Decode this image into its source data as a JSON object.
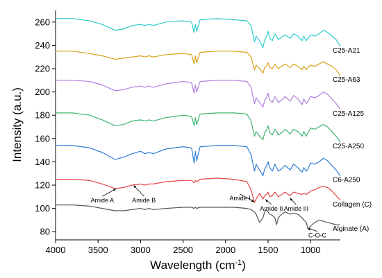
{
  "chart_data": {
    "type": "line",
    "title": "",
    "xlabel": "Wavelength (cm",
    "xlabel_sup": "-1",
    "xlabel_close": ")",
    "ylabel": "Intensity (a.u.)",
    "xlim": [
      4000,
      650
    ],
    "ylim": [
      73,
      270
    ],
    "x_ticks": [
      4000,
      3500,
      3000,
      2500,
      2000,
      1500,
      1000
    ],
    "y_ticks": [
      80,
      100,
      120,
      140,
      160,
      180,
      200,
      220,
      240,
      260
    ],
    "grid": false,
    "legend": "inline-right",
    "series": [
      {
        "name": "C25-A21",
        "color": "#2ECACA",
        "x": [
          4000,
          3800,
          3600,
          3450,
          3300,
          3200,
          3100,
          3000,
          2950,
          2900,
          2850,
          2700,
          2500,
          2400,
          2370,
          2355,
          2340,
          2300,
          2100,
          1900,
          1750,
          1700,
          1660,
          1640,
          1600,
          1560,
          1540,
          1520,
          1500,
          1480,
          1450,
          1420,
          1400,
          1380,
          1340,
          1300,
          1240,
          1200,
          1150,
          1100,
          1080,
          1050,
          1030,
          1000,
          950,
          900,
          850,
          800,
          750,
          700,
          650
        ],
        "y": [
          263,
          263,
          261,
          258,
          253,
          254,
          257,
          258,
          257,
          258,
          257,
          260,
          261,
          260,
          251,
          258,
          252,
          262,
          263,
          262,
          261,
          257,
          243,
          248,
          244,
          238,
          245,
          247,
          252,
          246,
          244,
          250,
          248,
          245,
          247,
          249,
          246,
          250,
          248,
          244,
          248,
          244,
          246,
          249,
          248,
          250,
          253,
          251,
          248,
          245,
          239
        ]
      },
      {
        "name": "C25-A63",
        "color": "#D4A017",
        "x": [
          4000,
          3800,
          3600,
          3450,
          3300,
          3200,
          3100,
          3000,
          2950,
          2900,
          2850,
          2700,
          2500,
          2400,
          2370,
          2355,
          2340,
          2300,
          2100,
          1900,
          1750,
          1700,
          1660,
          1640,
          1600,
          1560,
          1540,
          1520,
          1500,
          1480,
          1450,
          1420,
          1400,
          1380,
          1340,
          1300,
          1240,
          1200,
          1150,
          1100,
          1080,
          1050,
          1030,
          1000,
          950,
          900,
          850,
          800,
          750,
          700,
          650
        ],
        "y": [
          235,
          235,
          233,
          231,
          228,
          229,
          230,
          231,
          230,
          231,
          230,
          232,
          233,
          232,
          224,
          231,
          225,
          234,
          235,
          235,
          234,
          230,
          219,
          223,
          220,
          216,
          221,
          222,
          225,
          221,
          220,
          224,
          222,
          220,
          222,
          224,
          221,
          224,
          222,
          219,
          222,
          219,
          221,
          223,
          222,
          224,
          226,
          224,
          222,
          219,
          214
        ]
      },
      {
        "name": "C25-A125",
        "color": "#B07FE0",
        "x": [
          4000,
          3800,
          3600,
          3450,
          3300,
          3200,
          3100,
          3000,
          2950,
          2900,
          2850,
          2700,
          2500,
          2400,
          2370,
          2355,
          2340,
          2300,
          2100,
          1900,
          1750,
          1700,
          1660,
          1640,
          1600,
          1560,
          1540,
          1520,
          1500,
          1480,
          1450,
          1420,
          1400,
          1380,
          1340,
          1300,
          1240,
          1200,
          1150,
          1100,
          1080,
          1050,
          1030,
          1000,
          950,
          900,
          850,
          800,
          750,
          700,
          650
        ],
        "y": [
          210,
          210,
          209,
          206,
          201,
          202,
          204,
          205,
          204,
          205,
          204,
          207,
          209,
          208,
          199,
          206,
          200,
          209,
          210,
          210,
          209,
          204,
          190,
          195,
          191,
          187,
          193,
          195,
          199,
          193,
          191,
          196,
          194,
          191,
          193,
          196,
          192,
          197,
          194,
          189,
          194,
          190,
          192,
          196,
          195,
          197,
          200,
          198,
          194,
          190,
          185
        ]
      },
      {
        "name": "C25-A250",
        "color": "#3CB371",
        "x": [
          4000,
          3800,
          3600,
          3450,
          3300,
          3200,
          3100,
          3000,
          2950,
          2900,
          2850,
          2700,
          2500,
          2400,
          2370,
          2355,
          2340,
          2300,
          2100,
          1900,
          1750,
          1700,
          1660,
          1640,
          1600,
          1560,
          1540,
          1520,
          1500,
          1480,
          1450,
          1420,
          1400,
          1380,
          1340,
          1300,
          1240,
          1200,
          1150,
          1100,
          1080,
          1050,
          1030,
          1000,
          950,
          900,
          850,
          800,
          750,
          700,
          650
        ],
        "y": [
          182,
          182,
          180,
          176,
          171,
          172,
          175,
          176,
          175,
          176,
          175,
          178,
          180,
          179,
          171,
          178,
          172,
          181,
          182,
          182,
          181,
          175,
          162,
          166,
          162,
          159,
          165,
          167,
          171,
          165,
          163,
          168,
          166,
          163,
          165,
          168,
          164,
          168,
          166,
          162,
          166,
          162,
          165,
          169,
          168,
          170,
          172,
          170,
          166,
          162,
          157
        ]
      },
      {
        "name": "C6-A250",
        "color": "#2E7BD6",
        "x": [
          4000,
          3800,
          3600,
          3450,
          3300,
          3200,
          3100,
          3000,
          2950,
          2900,
          2850,
          2700,
          2500,
          2400,
          2370,
          2355,
          2340,
          2300,
          2100,
          1900,
          1750,
          1700,
          1660,
          1640,
          1600,
          1560,
          1540,
          1520,
          1500,
          1480,
          1450,
          1420,
          1400,
          1380,
          1340,
          1300,
          1240,
          1200,
          1150,
          1100,
          1080,
          1050,
          1030,
          1000,
          950,
          900,
          850,
          800,
          750,
          700,
          650
        ],
        "y": [
          154,
          154,
          152,
          148,
          142,
          144,
          147,
          149,
          147,
          148,
          147,
          151,
          153,
          152,
          139,
          149,
          141,
          153,
          154,
          154,
          153,
          146,
          132,
          138,
          133,
          128,
          134,
          136,
          140,
          135,
          132,
          138,
          135,
          132,
          134,
          137,
          133,
          138,
          135,
          131,
          135,
          132,
          134,
          139,
          138,
          140,
          143,
          141,
          137,
          133,
          128
        ]
      },
      {
        "name": "Collagen (C)",
        "color": "#E64545",
        "x": [
          4000,
          3800,
          3600,
          3450,
          3300,
          3200,
          3100,
          3000,
          2950,
          2900,
          2850,
          2700,
          2500,
          2400,
          2370,
          2355,
          2340,
          2300,
          2100,
          1900,
          1750,
          1700,
          1660,
          1640,
          1600,
          1560,
          1540,
          1520,
          1500,
          1480,
          1450,
          1420,
          1400,
          1380,
          1340,
          1300,
          1240,
          1200,
          1150,
          1100,
          1080,
          1050,
          1030,
          1000,
          950,
          900,
          850,
          800,
          750,
          700,
          650
        ],
        "y": [
          125,
          125,
          124,
          121,
          117,
          118,
          120,
          121,
          120,
          121,
          121,
          123,
          124,
          124,
          122,
          124,
          123,
          125,
          126,
          125,
          123,
          116,
          105,
          108,
          113,
          108,
          111,
          112,
          114,
          110,
          111,
          114,
          112,
          110,
          112,
          114,
          111,
          114,
          113,
          112,
          113,
          112,
          113,
          115,
          116,
          118,
          119,
          118,
          115,
          111,
          107
        ]
      },
      {
        "name": "Alginate (A)",
        "color": "#555555",
        "x": [
          4000,
          3800,
          3600,
          3450,
          3300,
          3200,
          3100,
          3000,
          2950,
          2900,
          2850,
          2700,
          2500,
          2400,
          2370,
          2355,
          2340,
          2300,
          2100,
          1900,
          1750,
          1700,
          1660,
          1640,
          1600,
          1560,
          1540,
          1520,
          1500,
          1480,
          1450,
          1420,
          1400,
          1380,
          1340,
          1300,
          1240,
          1200,
          1150,
          1100,
          1080,
          1050,
          1030,
          1000,
          950,
          900,
          850,
          800,
          750,
          700,
          650
        ],
        "y": [
          103,
          103,
          102,
          100,
          98,
          98,
          99,
          100,
          99,
          100,
          99,
          100,
          101,
          101,
          100,
          101,
          100,
          101,
          101,
          101,
          100,
          99,
          97,
          95,
          88,
          92,
          97,
          99,
          97,
          95,
          94,
          92,
          86,
          92,
          95,
          97,
          95,
          96,
          95,
          92,
          90,
          88,
          82,
          85,
          88,
          90,
          89,
          88,
          87,
          86,
          86
        ]
      }
    ],
    "annotations": [
      {
        "text": "Amide A",
        "x": 3290,
        "y": 118,
        "tx": 3450,
        "ty": 105
      },
      {
        "text": "Amide B",
        "x": 3080,
        "y": 121,
        "tx": 2960,
        "ty": 105
      },
      {
        "text": "Amide I",
        "x": 1665,
        "y": 107,
        "tx": 1830,
        "ty": 107
      },
      {
        "text": "Amide II",
        "x": 1530,
        "y": 109,
        "tx": 1460,
        "ty": 98
      },
      {
        "text": "Amide III",
        "x": 1240,
        "y": 110,
        "tx": 1170,
        "ty": 98
      },
      {
        "text": "C-O-C",
        "x": 1030,
        "y": 84,
        "tx": 920,
        "ty": 75
      }
    ]
  }
}
